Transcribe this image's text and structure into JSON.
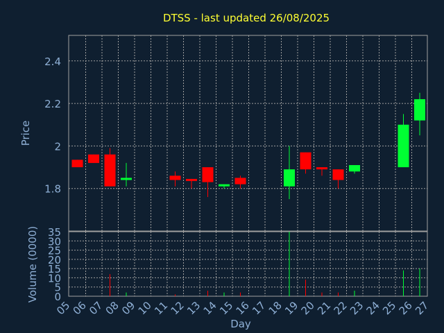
{
  "chart_data": [
    {
      "type": "candlestick",
      "title": "DTSS - last updated 26/08/2025",
      "ylabel": "Price",
      "ylim": [
        1.6,
        2.52
      ],
      "yticks": [
        "1.8",
        "2",
        "2.2",
        "2.4"
      ],
      "ytick_values": [
        1.8,
        2.0,
        2.2,
        2.4
      ],
      "grid": true,
      "up_color": "#00ff33",
      "down_color": "#ff0000",
      "candles": [
        {
          "day": "05",
          "open": 1.935,
          "close": 1.9,
          "high": 1.935,
          "low": 1.9
        },
        {
          "day": "06",
          "open": 1.96,
          "close": 1.92,
          "high": 1.96,
          "low": 1.92
        },
        {
          "day": "07",
          "open": 1.96,
          "close": 1.81,
          "high": 1.99,
          "low": 1.81
        },
        {
          "day": "08",
          "open": 1.84,
          "close": 1.85,
          "high": 1.92,
          "low": 1.81
        },
        {
          "day": "11",
          "open": 1.86,
          "close": 1.84,
          "high": 1.88,
          "low": 1.81
        },
        {
          "day": "12",
          "open": 1.845,
          "close": 1.84,
          "high": 1.845,
          "low": 1.8
        },
        {
          "day": "13",
          "open": 1.9,
          "close": 1.83,
          "high": 1.9,
          "low": 1.76
        },
        {
          "day": "14",
          "open": 1.81,
          "close": 1.82,
          "high": 1.82,
          "low": 1.8
        },
        {
          "day": "15",
          "open": 1.85,
          "close": 1.82,
          "high": 1.86,
          "low": 1.8
        },
        {
          "day": "18",
          "open": 1.81,
          "close": 1.89,
          "high": 2.0,
          "low": 1.75
        },
        {
          "day": "19",
          "open": 1.97,
          "close": 1.89,
          "high": 1.97,
          "low": 1.87
        },
        {
          "day": "20",
          "open": 1.9,
          "close": 1.89,
          "high": 1.9,
          "low": 1.86
        },
        {
          "day": "21",
          "open": 1.89,
          "close": 1.84,
          "high": 1.89,
          "low": 1.8
        },
        {
          "day": "22",
          "open": 1.88,
          "close": 1.91,
          "high": 1.91,
          "low": 1.87
        },
        {
          "day": "25",
          "open": 1.9,
          "close": 2.1,
          "high": 2.15,
          "low": 1.9
        },
        {
          "day": "26",
          "open": 2.12,
          "close": 2.22,
          "high": 2.25,
          "low": 2.05
        }
      ]
    },
    {
      "type": "bar",
      "ylabel": "Volume (0000)",
      "xlabel": "Day",
      "ylim": [
        0,
        35
      ],
      "yticks": [
        "0",
        "5",
        "10",
        "15",
        "20",
        "25",
        "30",
        "35"
      ],
      "ytick_values": [
        0,
        5,
        10,
        15,
        20,
        25,
        30,
        35
      ],
      "categories": [
        "05",
        "06",
        "07",
        "08",
        "09",
        "10",
        "11",
        "12",
        "13",
        "14",
        "15",
        "16",
        "17",
        "18",
        "19",
        "20",
        "21",
        "22",
        "23",
        "24",
        "25",
        "26",
        "27"
      ],
      "volumes": [
        {
          "day": "07",
          "value": 12,
          "color": "#ff0000"
        },
        {
          "day": "08",
          "value": 2,
          "color": "#00ff33"
        },
        {
          "day": "11",
          "value": 1,
          "color": "#ff0000"
        },
        {
          "day": "13",
          "value": 3,
          "color": "#ff0000"
        },
        {
          "day": "14",
          "value": 2,
          "color": "#00ff33"
        },
        {
          "day": "15",
          "value": 2,
          "color": "#ff0000"
        },
        {
          "day": "18",
          "value": 35,
          "color": "#00ff33"
        },
        {
          "day": "19",
          "value": 9,
          "color": "#ff0000"
        },
        {
          "day": "20",
          "value": 2,
          "color": "#ff0000"
        },
        {
          "day": "21",
          "value": 2,
          "color": "#ff0000"
        },
        {
          "day": "22",
          "value": 3,
          "color": "#00ff33"
        },
        {
          "day": "25",
          "value": 14,
          "color": "#00ff33"
        },
        {
          "day": "26",
          "value": 15,
          "color": "#00ff33"
        }
      ]
    }
  ],
  "colors": {
    "background": "#0f1f30",
    "title": "#ffff33",
    "axis_text": "#8fb0d6",
    "grid": "#a0a0a0"
  }
}
